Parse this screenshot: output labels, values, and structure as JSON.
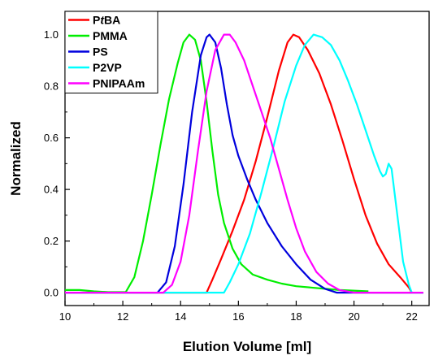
{
  "chart_data": {
    "type": "line",
    "title": "",
    "xlabel": "Elution Volume [ml]",
    "ylabel": "Normalized",
    "xlim": [
      10,
      22.6
    ],
    "ylim": [
      -0.05,
      1.09
    ],
    "xticks": [
      10,
      12,
      14,
      16,
      18,
      20,
      22
    ],
    "yticks": [
      0.0,
      0.2,
      0.4,
      0.6,
      0.8,
      1.0
    ],
    "ytick_labels": [
      "0.0",
      "0.2",
      "0.4",
      "0.6",
      "0.8",
      "1.0"
    ],
    "grid": false,
    "legend_position": "top-left",
    "series": [
      {
        "name": "PtBA",
        "legend": {
          "pre": "P",
          "italic": "t",
          "post": "BA"
        },
        "color": "#ff0000",
        "points": [
          [
            10,
            0
          ],
          [
            14.9,
            0
          ],
          [
            15.1,
            0.05
          ],
          [
            15.4,
            0.13
          ],
          [
            15.8,
            0.24
          ],
          [
            16.2,
            0.36
          ],
          [
            16.6,
            0.51
          ],
          [
            17.0,
            0.68
          ],
          [
            17.4,
            0.86
          ],
          [
            17.7,
            0.97
          ],
          [
            17.9,
            1.0
          ],
          [
            18.1,
            0.99
          ],
          [
            18.4,
            0.94
          ],
          [
            18.8,
            0.85
          ],
          [
            19.2,
            0.73
          ],
          [
            19.6,
            0.59
          ],
          [
            20.0,
            0.44
          ],
          [
            20.4,
            0.3
          ],
          [
            20.8,
            0.19
          ],
          [
            21.2,
            0.11
          ],
          [
            21.6,
            0.06
          ],
          [
            21.9,
            0.02
          ],
          [
            22.0,
            0
          ]
        ]
      },
      {
        "name": "PMMA",
        "color": "#00ee00",
        "points": [
          [
            10,
            0.01
          ],
          [
            10.5,
            0.01
          ],
          [
            11.0,
            0.005
          ],
          [
            11.5,
            0.002
          ],
          [
            12.1,
            0.002
          ],
          [
            12.4,
            0.06
          ],
          [
            12.7,
            0.2
          ],
          [
            13.0,
            0.38
          ],
          [
            13.3,
            0.57
          ],
          [
            13.6,
            0.75
          ],
          [
            13.9,
            0.89
          ],
          [
            14.1,
            0.97
          ],
          [
            14.3,
            1.0
          ],
          [
            14.5,
            0.98
          ],
          [
            14.7,
            0.9
          ],
          [
            14.9,
            0.74
          ],
          [
            15.1,
            0.55
          ],
          [
            15.3,
            0.38
          ],
          [
            15.5,
            0.27
          ],
          [
            15.8,
            0.17
          ],
          [
            16.1,
            0.11
          ],
          [
            16.5,
            0.07
          ],
          [
            17.0,
            0.05
          ],
          [
            17.5,
            0.035
          ],
          [
            18.0,
            0.025
          ],
          [
            18.5,
            0.02
          ],
          [
            19.0,
            0.015
          ],
          [
            19.5,
            0.01
          ],
          [
            20.5,
            0.005
          ]
        ]
      },
      {
        "name": "PS",
        "color": "#0000dd",
        "points": [
          [
            10,
            0
          ],
          [
            13.2,
            0
          ],
          [
            13.5,
            0.04
          ],
          [
            13.8,
            0.18
          ],
          [
            14.1,
            0.42
          ],
          [
            14.4,
            0.7
          ],
          [
            14.7,
            0.92
          ],
          [
            14.9,
            0.99
          ],
          [
            15.0,
            1.0
          ],
          [
            15.2,
            0.97
          ],
          [
            15.4,
            0.87
          ],
          [
            15.6,
            0.73
          ],
          [
            15.8,
            0.61
          ],
          [
            16.0,
            0.53
          ],
          [
            16.3,
            0.44
          ],
          [
            16.6,
            0.36
          ],
          [
            17.0,
            0.27
          ],
          [
            17.5,
            0.18
          ],
          [
            18.0,
            0.11
          ],
          [
            18.5,
            0.05
          ],
          [
            19.0,
            0.015
          ],
          [
            19.4,
            0
          ],
          [
            22.4,
            0
          ]
        ]
      },
      {
        "name": "P2VP",
        "color": "#00ffff",
        "points": [
          [
            10,
            0
          ],
          [
            15.5,
            0
          ],
          [
            15.7,
            0.04
          ],
          [
            16.0,
            0.11
          ],
          [
            16.4,
            0.23
          ],
          [
            16.8,
            0.39
          ],
          [
            17.2,
            0.56
          ],
          [
            17.6,
            0.74
          ],
          [
            18.0,
            0.88
          ],
          [
            18.3,
            0.96
          ],
          [
            18.6,
            1.0
          ],
          [
            18.9,
            0.99
          ],
          [
            19.2,
            0.96
          ],
          [
            19.5,
            0.9
          ],
          [
            19.8,
            0.82
          ],
          [
            20.1,
            0.73
          ],
          [
            20.4,
            0.63
          ],
          [
            20.7,
            0.53
          ],
          [
            20.9,
            0.47
          ],
          [
            21.0,
            0.45
          ],
          [
            21.1,
            0.46
          ],
          [
            21.2,
            0.5
          ],
          [
            21.3,
            0.48
          ],
          [
            21.5,
            0.3
          ],
          [
            21.7,
            0.12
          ],
          [
            21.9,
            0.03
          ],
          [
            22.0,
            0
          ],
          [
            22.4,
            0
          ]
        ]
      },
      {
        "name": "PNIPAAm",
        "color": "#ff00ff",
        "points": [
          [
            10,
            0
          ],
          [
            13.4,
            0
          ],
          [
            13.7,
            0.03
          ],
          [
            14.0,
            0.12
          ],
          [
            14.3,
            0.3
          ],
          [
            14.6,
            0.55
          ],
          [
            14.9,
            0.78
          ],
          [
            15.2,
            0.94
          ],
          [
            15.5,
            1.0
          ],
          [
            15.7,
            1.0
          ],
          [
            15.9,
            0.97
          ],
          [
            16.2,
            0.9
          ],
          [
            16.5,
            0.8
          ],
          [
            16.8,
            0.7
          ],
          [
            17.1,
            0.6
          ],
          [
            17.4,
            0.48
          ],
          [
            17.7,
            0.36
          ],
          [
            18.0,
            0.25
          ],
          [
            18.3,
            0.16
          ],
          [
            18.7,
            0.08
          ],
          [
            19.1,
            0.035
          ],
          [
            19.5,
            0.01
          ],
          [
            20.0,
            0
          ],
          [
            22.4,
            0
          ]
        ]
      }
    ]
  }
}
